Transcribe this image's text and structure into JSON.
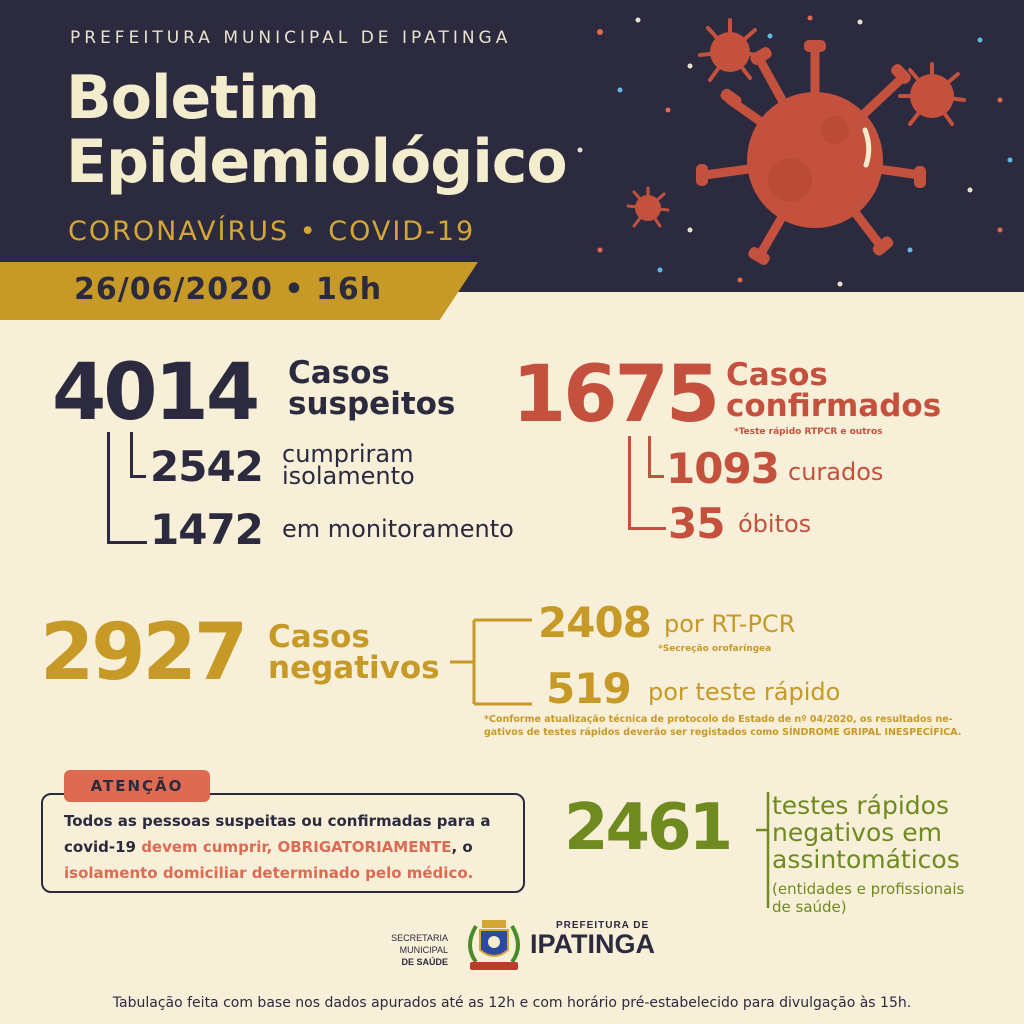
{
  "header": {
    "municipality": "PREFEITURA MUNICIPAL DE IPATINGA",
    "title_line1": "Boletim",
    "title_line2": "Epidemiológico",
    "subtitle": "CORONAVÍRUS • COVID-19",
    "date": "26/06/2020 • 16h"
  },
  "suspected": {
    "total": "4014",
    "label_line1": "Casos",
    "label_line2": "suspeitos",
    "isolation_value": "2542",
    "isolation_label_line1": "cumpriram",
    "isolation_label_line2": "isolamento",
    "monitoring_value": "1472",
    "monitoring_label": "em monitoramento"
  },
  "confirmed": {
    "total": "1675",
    "label_line1": "Casos",
    "label_line2": "confirmados",
    "note": "*Teste rápido RTPCR e outros",
    "cured_value": "1093",
    "cured_label": "curados",
    "deaths_value": "35",
    "deaths_label": "óbitos"
  },
  "negative": {
    "total": "2927",
    "label_line1": "Casos",
    "label_line2": "negativos",
    "rtpcr_value": "2408",
    "rtpcr_label": "por RT-PCR",
    "rtpcr_note": "*Secreção orofaríngea",
    "rapid_value": "519",
    "rapid_label": "por teste rápido",
    "protocol_note_line1": "*Conforme atualização técnica de protocolo do Estado de nº 04/2020, os resultados ne-",
    "protocol_note_line2": "gativos de testes rápidos deverão ser registados como SÍNDROME GRIPAL INESPECÍFICA."
  },
  "attention": {
    "tag": "ATENÇÃO",
    "text_part1": "Todos as pessoas suspeitas ou confirmadas para a covid-19 ",
    "text_highlight1": "devem cumprir, ",
    "text_highlight2": "OBRIGATORIAMENTE",
    "text_part2": ", o ",
    "text_highlight3": "isolamento domiciliar determinado pelo médico."
  },
  "asymptomatic": {
    "value": "2461",
    "label_line1": "testes rápidos",
    "label_line2": "negativos em",
    "label_line3": "assintomáticos",
    "note_line1": "(entidades e profissionais",
    "note_line2": "de saúde)"
  },
  "logos": {
    "secretaria_line1": "SECRETARIA MUNICIPAL",
    "secretaria_line2": "DE SAÚDE",
    "prefeitura_small": "PREFEITURA DE",
    "prefeitura_big": "IPATINGA"
  },
  "footer": "Tabulação feita com base nos dados apurados até as 12h e com horário pré-estabelecido para divulgação às 15h.",
  "colors": {
    "navy": "#2b2a3e",
    "cream": "#f8efd9",
    "gold": "#c79a27",
    "red": "#c4513d",
    "green": "#6f8a1f",
    "coral": "#de6a52"
  }
}
